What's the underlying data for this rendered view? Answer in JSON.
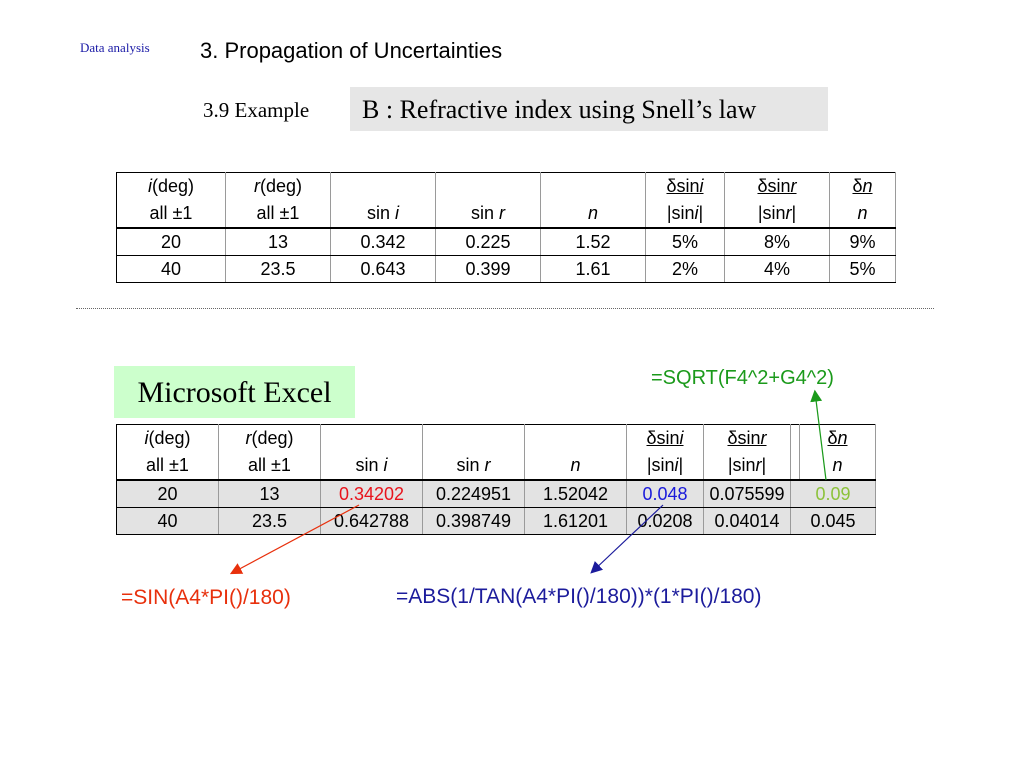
{
  "header": {
    "section_tag": "Data analysis",
    "title": "3. Propagation of Uncertainties",
    "example_label": "3.9 Example",
    "example_title": "B : Refractive index using Snell’s law"
  },
  "table_top": {
    "headers": [
      {
        "line1_italic": "i",
        "line1_rest": "(deg)",
        "line2": "all ±1"
      },
      {
        "line1_italic": "r",
        "line1_rest": "(deg)",
        "line2": "all ±1"
      },
      {
        "line2_plain": "sin ",
        "line2_italic": "i"
      },
      {
        "line2_plain": "sin ",
        "line2_italic": "r"
      },
      {
        "line2_italic": "n"
      },
      {
        "num_plain": "δsin",
        "num_italic": "i",
        "den_plain": "|sin",
        "den_italic": "i",
        "den_end": "|"
      },
      {
        "num_plain": "δsin",
        "num_italic": "r",
        "den_plain": "|sin",
        "den_italic": "r",
        "den_end": "|"
      },
      {
        "num_plain": "δ",
        "num_italic": "n",
        "den_italic": "n"
      }
    ],
    "rows": [
      [
        "20",
        "13",
        "0.342",
        "0.225",
        "1.52",
        "5%",
        "8%",
        "9%"
      ],
      [
        "40",
        "23.5",
        "0.643",
        "0.399",
        "1.61",
        "2%",
        "4%",
        "5%"
      ]
    ]
  },
  "excel": {
    "label": "Microsoft Excel",
    "rows": [
      [
        "20",
        "13",
        "0.34202",
        "0.224951",
        "1.52042",
        "0.048",
        "0.075599",
        "0.09"
      ],
      [
        "40",
        "23.5",
        "0.642788",
        "0.398749",
        "1.61201",
        "0.0208",
        "0.04014",
        "0.045"
      ]
    ],
    "highlight_colors": {
      "sin_i": "#e8141c",
      "dsini": "#1a1adb",
      "dn": "#8cc23a"
    }
  },
  "formulas": {
    "sqrt": "=SQRT(F4^2+G4^2)",
    "sin": "=SIN(A4*PI()/180)",
    "abs": "=ABS(1/TAN(A4*PI()/180))*(1*PI()/180)"
  }
}
